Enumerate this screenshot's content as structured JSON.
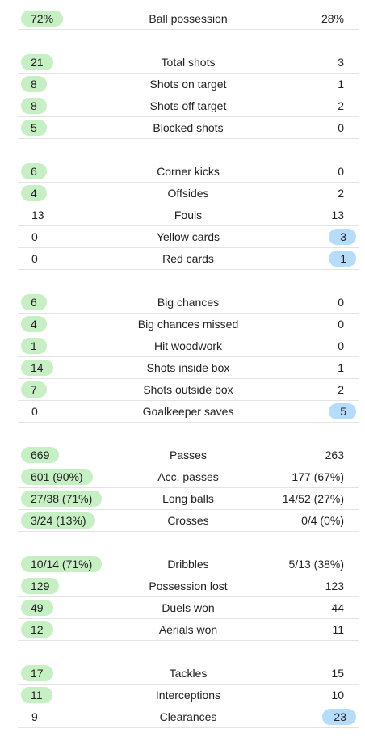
{
  "groups": [
    {
      "rows": [
        {
          "label": "Ball possession",
          "home": "72%",
          "away": "28%",
          "win": "home"
        }
      ]
    },
    {
      "rows": [
        {
          "label": "Total shots",
          "home": "21",
          "away": "3",
          "win": "home"
        },
        {
          "label": "Shots on target",
          "home": "8",
          "away": "1",
          "win": "home"
        },
        {
          "label": "Shots off target",
          "home": "8",
          "away": "2",
          "win": "home"
        },
        {
          "label": "Blocked shots",
          "home": "5",
          "away": "0",
          "win": "home"
        }
      ]
    },
    {
      "rows": [
        {
          "label": "Corner kicks",
          "home": "6",
          "away": "0",
          "win": "home"
        },
        {
          "label": "Offsides",
          "home": "4",
          "away": "2",
          "win": "home"
        },
        {
          "label": "Fouls",
          "home": "13",
          "away": "13",
          "win": "none"
        },
        {
          "label": "Yellow cards",
          "home": "0",
          "away": "3",
          "win": "away"
        },
        {
          "label": "Red cards",
          "home": "0",
          "away": "1",
          "win": "away"
        }
      ]
    },
    {
      "rows": [
        {
          "label": "Big chances",
          "home": "6",
          "away": "0",
          "win": "home"
        },
        {
          "label": "Big chances missed",
          "home": "4",
          "away": "0",
          "win": "home"
        },
        {
          "label": "Hit woodwork",
          "home": "1",
          "away": "0",
          "win": "home"
        },
        {
          "label": "Shots inside box",
          "home": "14",
          "away": "1",
          "win": "home"
        },
        {
          "label": "Shots outside box",
          "home": "7",
          "away": "2",
          "win": "home"
        },
        {
          "label": "Goalkeeper saves",
          "home": "0",
          "away": "5",
          "win": "away"
        }
      ]
    },
    {
      "rows": [
        {
          "label": "Passes",
          "home": "669",
          "away": "263",
          "win": "home"
        },
        {
          "label": "Acc. passes",
          "home": "601 (90%)",
          "away": "177 (67%)",
          "win": "home"
        },
        {
          "label": "Long balls",
          "home": "27/38 (71%)",
          "away": "14/52 (27%)",
          "win": "home"
        },
        {
          "label": "Crosses",
          "home": "3/24 (13%)",
          "away": "0/4 (0%)",
          "win": "home"
        }
      ]
    },
    {
      "rows": [
        {
          "label": "Dribbles",
          "home": "10/14 (71%)",
          "away": "5/13 (38%)",
          "win": "home"
        },
        {
          "label": "Possession lost",
          "home": "129",
          "away": "123",
          "win": "home"
        },
        {
          "label": "Duels won",
          "home": "49",
          "away": "44",
          "win": "home"
        },
        {
          "label": "Aerials won",
          "home": "12",
          "away": "11",
          "win": "home"
        }
      ]
    },
    {
      "rows": [
        {
          "label": "Tackles",
          "home": "17",
          "away": "15",
          "win": "home"
        },
        {
          "label": "Interceptions",
          "home": "11",
          "away": "10",
          "win": "home"
        },
        {
          "label": "Clearances",
          "home": "9",
          "away": "23",
          "win": "away"
        }
      ]
    }
  ],
  "colors": {
    "home_highlight": "#c6efc4",
    "away_highlight": "#b6dcfb",
    "divider": "#e3e3e3"
  }
}
